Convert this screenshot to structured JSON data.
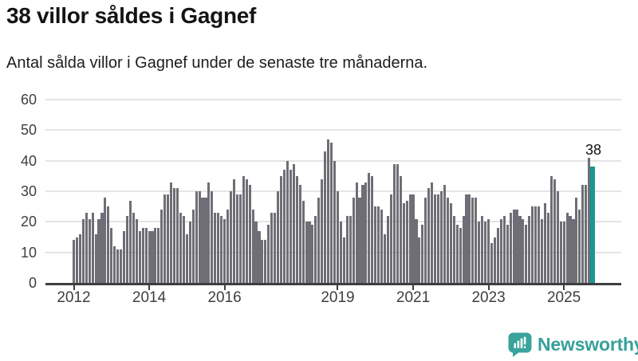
{
  "header": {
    "title": "38 villor såldes i Gagnef",
    "subtitle": "Antal sålda villor i Gagnef under de senaste tre månaderna."
  },
  "chart_data": {
    "type": "bar",
    "title": "38 villor såldes i Gagnef",
    "subtitle": "Antal sålda villor i Gagnef under de senaste tre månaderna.",
    "x_start_month": "2012-01",
    "x_end_month": "2025-10",
    "values": [
      14,
      15,
      16,
      21,
      23,
      21,
      23,
      16,
      21,
      23,
      28,
      25,
      18,
      12,
      11,
      11,
      17,
      22,
      27,
      23,
      21,
      17,
      18,
      18,
      17,
      17,
      18,
      18,
      24,
      29,
      29,
      33,
      31,
      31,
      23,
      22,
      16,
      20,
      24,
      30,
      30,
      28,
      28,
      33,
      30,
      23,
      23,
      22,
      21,
      24,
      30,
      34,
      29,
      29,
      35,
      34,
      32,
      24,
      20,
      17,
      14,
      14,
      19,
      23,
      23,
      30,
      35,
      37,
      40,
      37,
      39,
      35,
      32,
      27,
      20,
      20,
      19,
      22,
      28,
      34,
      43,
      47,
      46,
      40,
      30,
      20,
      15,
      22,
      22,
      28,
      33,
      28,
      32,
      33,
      36,
      35,
      25,
      25,
      24,
      16,
      22,
      29,
      39,
      39,
      35,
      26,
      27,
      29,
      29,
      21,
      15,
      19,
      28,
      31,
      33,
      29,
      29,
      30,
      32,
      28,
      26,
      22,
      19,
      18,
      22,
      29,
      29,
      28,
      28,
      20,
      22,
      20,
      21,
      13,
      15,
      18,
      21,
      22,
      19,
      23,
      24,
      24,
      22,
      21,
      19,
      22,
      25,
      25,
      25,
      21,
      26,
      23,
      35,
      34,
      30,
      20,
      20,
      23,
      22,
      21,
      28,
      24,
      32,
      32,
      41,
      38
    ],
    "highlight_last": true,
    "highlight_value_label": "38",
    "ylim": [
      0,
      60
    ],
    "y_ticks": [
      0,
      10,
      20,
      30,
      40,
      50,
      60
    ],
    "x_ticks": [
      {
        "label": "2012",
        "month_index": 0
      },
      {
        "label": "2014",
        "month_index": 24
      },
      {
        "label": "2016",
        "month_index": 48
      },
      {
        "label": "2019",
        "month_index": 84
      },
      {
        "label": "2021",
        "month_index": 108
      },
      {
        "label": "2023",
        "month_index": 132
      },
      {
        "label": "2025",
        "month_index": 156
      }
    ],
    "grid": true,
    "legend": false,
    "colors": {
      "bar": "#6f6e76",
      "highlight": "#18988f",
      "gridline": "#e4e4e4",
      "axis": "#3e3e3e"
    }
  },
  "annotation": {
    "value": "38"
  },
  "footer": {
    "brand": "Newsworthy",
    "brand_color": "#35a099",
    "icon": "newsworthy-speech-bubble-barchart-icon"
  }
}
